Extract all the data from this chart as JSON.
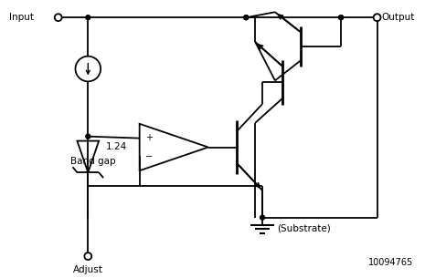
{
  "bg_color": "#ffffff",
  "line_color": "#000000",
  "fig_width": 4.65,
  "fig_height": 3.05,
  "dpi": 100,
  "label_input": "Input",
  "label_output": "Output",
  "label_adjust": "Adjust",
  "label_bandgap1": "1.24",
  "label_bandgap2": "Band gap",
  "label_substrate": "(Substrate)",
  "label_id": "10094765"
}
